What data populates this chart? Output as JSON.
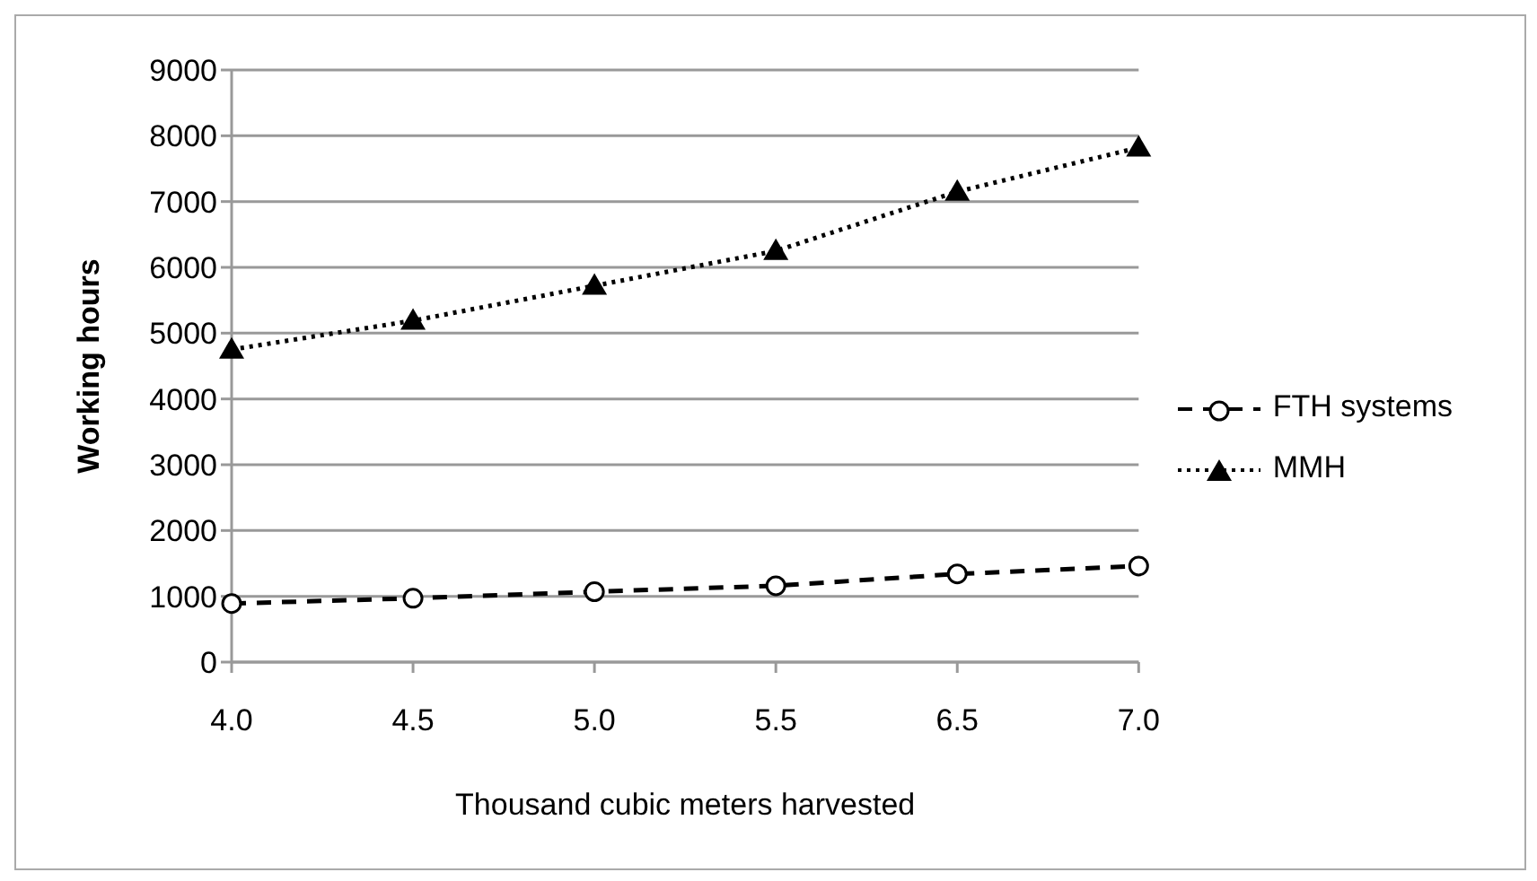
{
  "chart_data": {
    "type": "line",
    "xlabel": "Thousand cubic meters harvested",
    "ylabel": "Working hours",
    "categories": [
      "4.0",
      "4.5",
      "5.0",
      "5.5",
      "6.5",
      "7.0"
    ],
    "series": [
      {
        "name": "FTH systems",
        "color": "#000000",
        "values": [
          890,
          970,
          1070,
          1160,
          1340,
          1460
        ],
        "marker": "circle",
        "line_style": "dashed"
      },
      {
        "name": "MMH",
        "color": "#000000",
        "values": [
          4750,
          5190,
          5720,
          6250,
          7150,
          7820
        ],
        "marker": "triangle",
        "line_style": "dotted"
      }
    ],
    "ylim": [
      0,
      9000
    ],
    "yticks": [
      0,
      1000,
      2000,
      3000,
      4000,
      5000,
      6000,
      7000,
      8000,
      9000
    ],
    "grid": "y",
    "legend": "right"
  }
}
